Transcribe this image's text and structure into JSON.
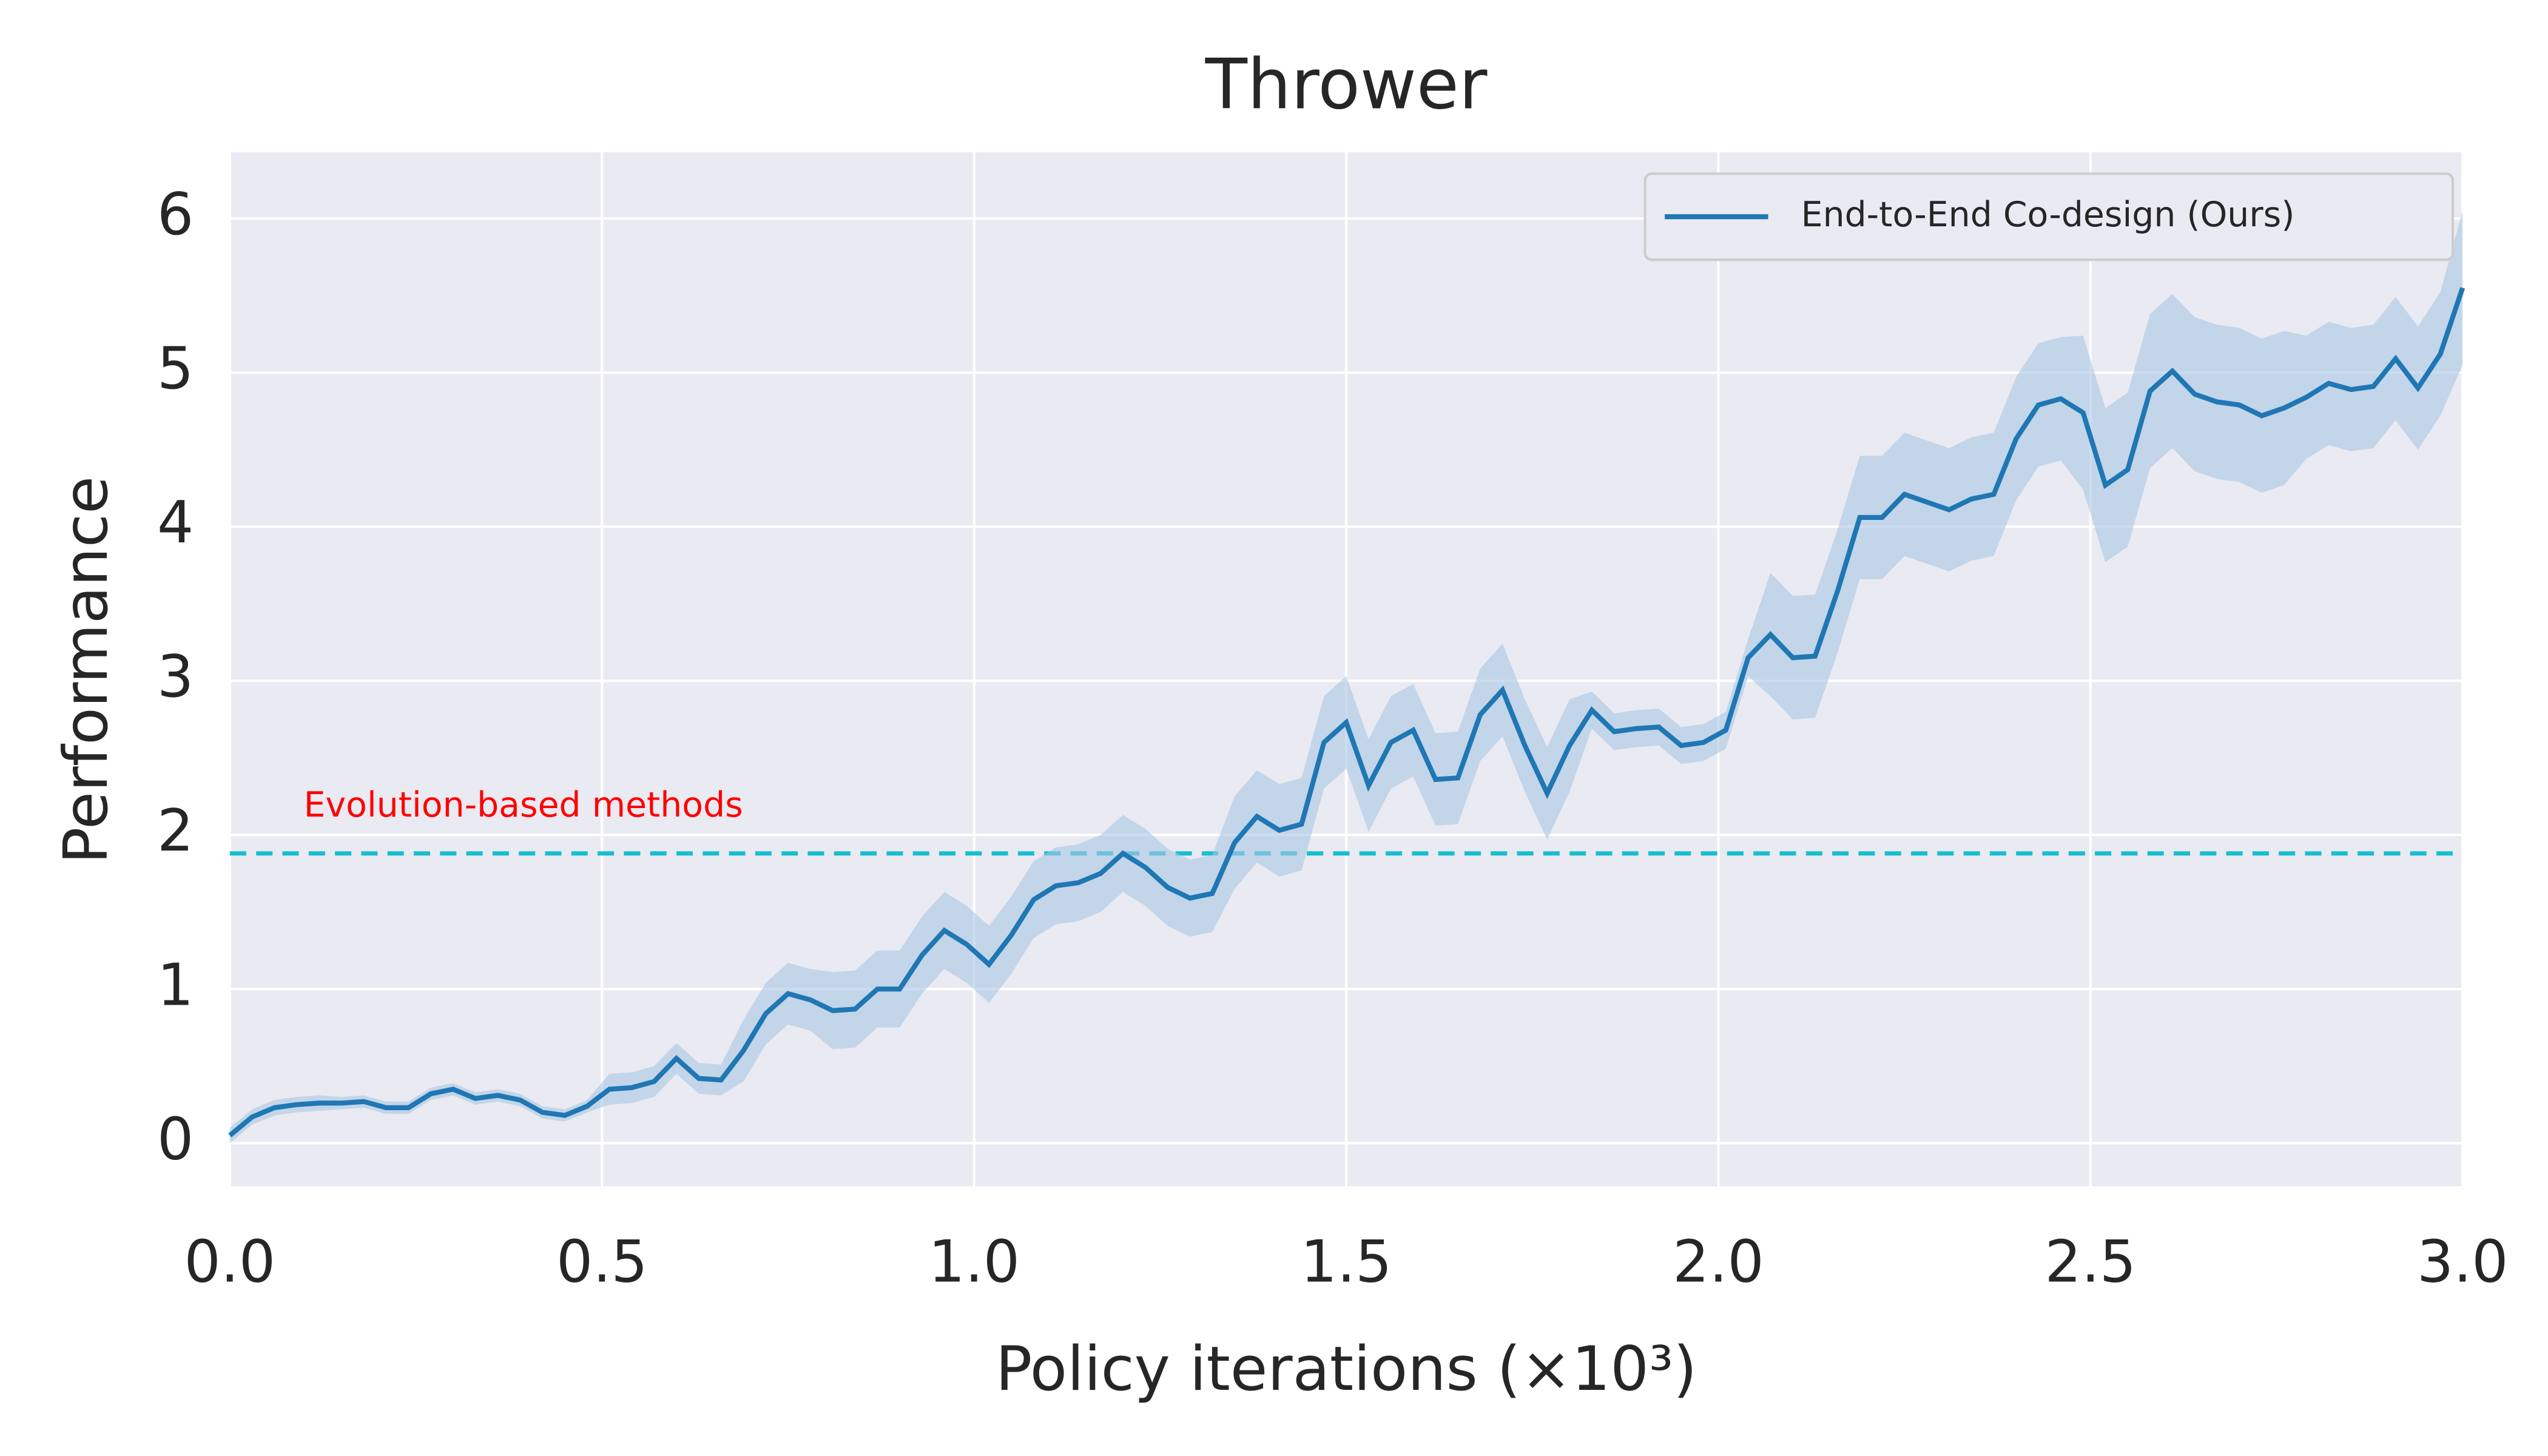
{
  "chart_data": {
    "type": "line",
    "title": "Thrower",
    "x_label": "Policy iterations (×10³)",
    "y_label": "Performance",
    "x": [
      0,
      0.03,
      0.06,
      0.09,
      0.12,
      0.15,
      0.18,
      0.21,
      0.24,
      0.27,
      0.3,
      0.33,
      0.36,
      0.39,
      0.42,
      0.45,
      0.48,
      0.51,
      0.54,
      0.57,
      0.6,
      0.63,
      0.66,
      0.69,
      0.72,
      0.75,
      0.78,
      0.81,
      0.84,
      0.87,
      0.9,
      0.93,
      0.96,
      0.99,
      1.02,
      1.05,
      1.08,
      1.11,
      1.14,
      1.17,
      1.2,
      1.23,
      1.26,
      1.29,
      1.32,
      1.35,
      1.38,
      1.41,
      1.44,
      1.47,
      1.5,
      1.53,
      1.56,
      1.59,
      1.62,
      1.65,
      1.68,
      1.71,
      1.74,
      1.77,
      1.8,
      1.83,
      1.86,
      1.89,
      1.92,
      1.95,
      1.98,
      2.01,
      2.04,
      2.07,
      2.1,
      2.13,
      2.16,
      2.19,
      2.22,
      2.25,
      2.28,
      2.31,
      2.34,
      2.37,
      2.4,
      2.43,
      2.46,
      2.49,
      2.52,
      2.55,
      2.58,
      2.61,
      2.64,
      2.67,
      2.7,
      2.73,
      2.76,
      2.79,
      2.82,
      2.85,
      2.88,
      2.91,
      2.94,
      2.97,
      3.0
    ],
    "series": [
      {
        "name": "End-to-End Co-design (Ours)",
        "color": "#1f77b4",
        "band_color": "#a9c6e3",
        "values": [
          0.05,
          0.17,
          0.23,
          0.25,
          0.26,
          0.26,
          0.27,
          0.23,
          0.23,
          0.32,
          0.35,
          0.29,
          0.31,
          0.28,
          0.2,
          0.18,
          0.24,
          0.35,
          0.36,
          0.4,
          0.55,
          0.42,
          0.41,
          0.6,
          0.84,
          0.97,
          0.93,
          0.86,
          0.87,
          1.0,
          1.0,
          1.22,
          1.38,
          1.29,
          1.16,
          1.35,
          1.58,
          1.67,
          1.69,
          1.75,
          1.88,
          1.79,
          1.66,
          1.59,
          1.62,
          1.95,
          2.12,
          2.03,
          2.07,
          2.6,
          2.73,
          2.32,
          2.6,
          2.68,
          2.36,
          2.37,
          2.78,
          2.94,
          2.58,
          2.27,
          2.58,
          2.81,
          2.67,
          2.69,
          2.7,
          2.58,
          2.6,
          2.68,
          3.15,
          3.3,
          3.15,
          3.16,
          3.58,
          4.06,
          4.06,
          4.21,
          4.16,
          4.11,
          4.18,
          4.21,
          4.57,
          4.79,
          4.83,
          4.74,
          4.27,
          4.37,
          4.88,
          5.01,
          4.86,
          4.81,
          4.79,
          4.72,
          4.77,
          4.84,
          4.93,
          4.89,
          4.91,
          5.09,
          4.9,
          5.12,
          5.55
        ],
        "lower": [
          0.0,
          0.12,
          0.18,
          0.2,
          0.21,
          0.22,
          0.23,
          0.19,
          0.19,
          0.28,
          0.31,
          0.25,
          0.27,
          0.24,
          0.16,
          0.14,
          0.2,
          0.25,
          0.26,
          0.3,
          0.45,
          0.32,
          0.31,
          0.4,
          0.64,
          0.77,
          0.73,
          0.61,
          0.62,
          0.75,
          0.75,
          0.97,
          1.13,
          1.04,
          0.91,
          1.1,
          1.33,
          1.42,
          1.44,
          1.5,
          1.63,
          1.54,
          1.41,
          1.34,
          1.37,
          1.65,
          1.82,
          1.73,
          1.77,
          2.3,
          2.43,
          2.02,
          2.3,
          2.38,
          2.06,
          2.07,
          2.48,
          2.64,
          2.28,
          1.97,
          2.28,
          2.69,
          2.55,
          2.57,
          2.58,
          2.46,
          2.48,
          2.56,
          3.03,
          2.9,
          2.75,
          2.76,
          3.18,
          3.66,
          3.66,
          3.81,
          3.76,
          3.71,
          3.78,
          3.81,
          4.17,
          4.39,
          4.43,
          4.24,
          3.77,
          3.87,
          4.38,
          4.51,
          4.36,
          4.31,
          4.29,
          4.22,
          4.27,
          4.44,
          4.53,
          4.49,
          4.51,
          4.69,
          4.5,
          4.72,
          5.05
        ],
        "upper": [
          0.1,
          0.22,
          0.28,
          0.3,
          0.31,
          0.3,
          0.31,
          0.27,
          0.27,
          0.36,
          0.39,
          0.33,
          0.35,
          0.32,
          0.24,
          0.22,
          0.28,
          0.45,
          0.46,
          0.5,
          0.65,
          0.52,
          0.51,
          0.8,
          1.04,
          1.17,
          1.13,
          1.11,
          1.12,
          1.25,
          1.25,
          1.47,
          1.63,
          1.54,
          1.41,
          1.6,
          1.83,
          1.92,
          1.94,
          2.0,
          2.13,
          2.04,
          1.91,
          1.84,
          1.87,
          2.25,
          2.42,
          2.33,
          2.37,
          2.9,
          3.03,
          2.62,
          2.9,
          2.98,
          2.66,
          2.67,
          3.08,
          3.24,
          2.88,
          2.57,
          2.88,
          2.93,
          2.79,
          2.81,
          2.82,
          2.7,
          2.72,
          2.8,
          3.27,
          3.7,
          3.55,
          3.56,
          3.98,
          4.46,
          4.46,
          4.61,
          4.56,
          4.51,
          4.58,
          4.61,
          4.97,
          5.19,
          5.23,
          5.24,
          4.77,
          4.87,
          5.38,
          5.51,
          5.36,
          5.31,
          5.29,
          5.22,
          5.27,
          5.24,
          5.33,
          5.29,
          5.31,
          5.49,
          5.3,
          5.52,
          6.05
        ]
      }
    ],
    "reference_lines": [
      {
        "value": 1.88,
        "label": "Evolution-based methods",
        "color": "#17becf",
        "label_color": "#ff0000",
        "style": "dashed"
      }
    ],
    "xlim": [
      0,
      3.0
    ],
    "ylim": [
      -0.28,
      6.43
    ],
    "xticks": [
      {
        "value": 0,
        "label": "0.0"
      },
      0.5,
      {
        "value": 1,
        "label": "1.0"
      },
      1.5,
      {
        "value": 2,
        "label": "2.0"
      },
      2.5,
      {
        "value": 3,
        "label": "3.0"
      }
    ],
    "yticks": [
      0,
      1,
      2,
      3,
      4,
      5,
      6
    ],
    "grid": true,
    "legend": "upper right"
  }
}
